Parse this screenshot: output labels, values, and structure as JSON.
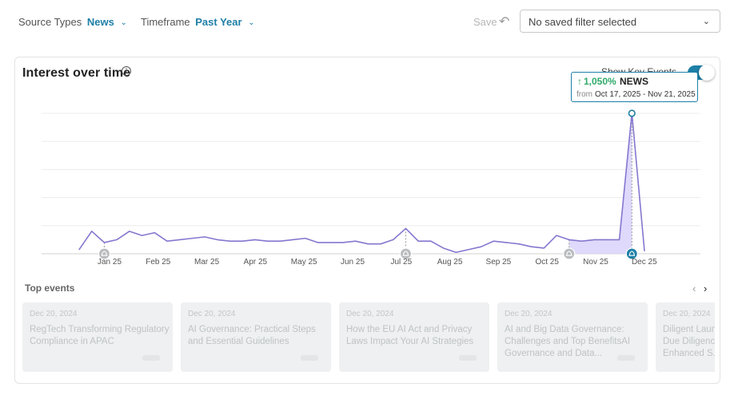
{
  "filters": {
    "source_label": "Source Types",
    "source_value": "News",
    "timeframe_label": "Timeframe",
    "timeframe_value": "Past Year"
  },
  "toolbar": {
    "save_label": "Save",
    "saved_filter_placeholder": "No saved filter selected"
  },
  "card": {
    "title": "Interest over time",
    "key_events_label": "Show Key Events",
    "key_events_enabled": true
  },
  "tooltip": {
    "change": "1,050%",
    "source": "NEWS",
    "from_label": "from",
    "range": "Oct 17, 2025 - Nov 21, 2025"
  },
  "chart_data": {
    "type": "area",
    "title": "",
    "xlabel": "",
    "ylabel": "",
    "x_tick_labels": [
      "Jan 25",
      "Feb 25",
      "Mar 25",
      "Apr 25",
      "May 25",
      "Jun 25",
      "Jul 25",
      "Aug 25",
      "Sep 25",
      "Oct 25",
      "Nov 25",
      "Dec 25"
    ],
    "series": [
      {
        "values": [
          3,
          16,
          8,
          10,
          16,
          13,
          15,
          9,
          10,
          11,
          12,
          10,
          9,
          9,
          10,
          9,
          9,
          10,
          11,
          8,
          8,
          8,
          9,
          7,
          7,
          10,
          18,
          9,
          9,
          4,
          1,
          3,
          5,
          9,
          8,
          7,
          5,
          4,
          13,
          10,
          9,
          10,
          10,
          10,
          100,
          2
        ]
      }
    ],
    "highlight_range": [
      39,
      44
    ],
    "peak_index": 44,
    "key_event_indices": [
      2,
      26,
      39,
      44
    ],
    "ylim": [
      0,
      100
    ],
    "grid": true
  },
  "top_events": {
    "title": "Top events",
    "items": [
      {
        "date": "Dec 20, 2024",
        "title": "RegTech Transforming Regulatory Compliance in APAC"
      },
      {
        "date": "Dec 20, 2024",
        "title": "AI Governance: Practical Steps and Essential Guidelines"
      },
      {
        "date": "Dec 20, 2024",
        "title": "How the EU AI Act and Privacy Laws Impact Your AI Strategies"
      },
      {
        "date": "Dec 20, 2024",
        "title": "AI and Big Data Governance: Challenges and Top BenefitsAI Governance and Data..."
      },
      {
        "date": "Dec 20, 2024",
        "title": "Diligent Launches AI-Powered Due Diligence Platform for Enhanced S..."
      }
    ]
  },
  "icons": {
    "info": "info-icon",
    "undo": "undo-icon",
    "chevron": "chevron-down-icon",
    "key_event": "bell-icon"
  },
  "colors": {
    "accent": "#1d7fa6",
    "line": "#8577cf",
    "fill": "#d9d2fb",
    "positive": "#2eaa6a"
  }
}
